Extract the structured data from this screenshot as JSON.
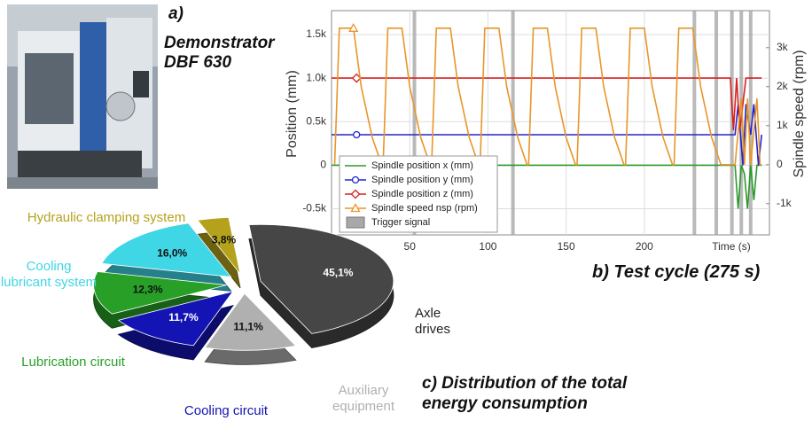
{
  "photo": {
    "label": "a)",
    "caption": "Demonstrator DBF 630"
  },
  "chart_data": [
    {
      "type": "line",
      "title": "b) Test cycle (275 s)",
      "xlabel": "Time (s)",
      "ylabel": "Position  (mm)",
      "y2label": "Spindle speed  (rpm)",
      "xlim": [
        0,
        280
      ],
      "xticks": [
        50,
        100,
        150,
        200
      ],
      "ylim": [
        -800,
        1775
      ],
      "yticks": [
        {
          "value": -500,
          "label": "-0.5k"
        },
        0,
        {
          "value": 500,
          "label": "0.5k"
        },
        {
          "value": 1000,
          "label": "1.0k"
        },
        {
          "value": 1500,
          "label": "1.5k"
        }
      ],
      "y2lim": [
        -1800,
        3950
      ],
      "y2ticks": [
        {
          "value": -1000,
          "label": "-1k"
        },
        0,
        {
          "value": 1000,
          "label": "1k"
        },
        {
          "value": 2000,
          "label": "2k"
        },
        {
          "value": 3000,
          "label": "3k"
        }
      ],
      "grid": true,
      "legend": "lower left",
      "series": [
        {
          "name": "Spindle position x (mm)",
          "color": "#2a9a2a",
          "marker": "none",
          "x": [
            0,
            258,
            260,
            262,
            264,
            266,
            268,
            270,
            272,
            275
          ],
          "values": [
            0,
            0,
            -500,
            0,
            -100,
            -500,
            0,
            -400,
            0,
            0
          ]
        },
        {
          "name": "Spindle position y (mm)",
          "color": "#2323d0",
          "marker": "circle",
          "x": [
            0,
            16,
            258,
            260,
            263,
            265,
            268,
            270,
            273,
            275
          ],
          "values": [
            350,
            350,
            350,
            700,
            0,
            700,
            350,
            700,
            0,
            350
          ]
        },
        {
          "name": "Spindle position z (mm)",
          "color": "#d82020",
          "marker": "diamond",
          "x": [
            0,
            16,
            255,
            257,
            259,
            261,
            265,
            275
          ],
          "values": [
            1000,
            1000,
            1000,
            400,
            1000,
            400,
            1000,
            1000
          ]
        },
        {
          "name": "Spindle speed nsp (rpm)",
          "color": "#e8962a",
          "marker": "triangle",
          "axis": "y2",
          "x": [
            2,
            5,
            14,
            19,
            26,
            32,
            33,
            36,
            45,
            50,
            57,
            63,
            64,
            67,
            76,
            81,
            88,
            94,
            95,
            98,
            107,
            112,
            119,
            125,
            126,
            129,
            138,
            143,
            150,
            156,
            157,
            160,
            169,
            174,
            181,
            187,
            188,
            191,
            200,
            205,
            212,
            218,
            219,
            222,
            231,
            236,
            243,
            249,
            258,
            262,
            264,
            266,
            268,
            272,
            274,
            275
          ],
          "values": [
            0,
            3500,
            3500,
            2000,
            700,
            0,
            0,
            3500,
            3500,
            2000,
            700,
            0,
            0,
            3500,
            3500,
            2000,
            700,
            0,
            0,
            3500,
            3500,
            2000,
            700,
            0,
            0,
            3500,
            3500,
            2000,
            700,
            0,
            0,
            3500,
            3500,
            2000,
            700,
            0,
            0,
            3500,
            3500,
            2000,
            700,
            0,
            0,
            3500,
            3500,
            2000,
            700,
            0,
            0,
            1700,
            0,
            1700,
            0,
            1700,
            0,
            0
          ]
        },
        {
          "name": "Trigger signal",
          "color": "#a8a8a8",
          "x": [
            53,
            116,
            232,
            246,
            256,
            262,
            268
          ]
        }
      ]
    },
    {
      "type": "pie",
      "title": "c) Distribution of the total energy consumption",
      "categories": [
        "Axle drives",
        "Auxiliary equipment",
        "Cooling circuit",
        "Lubrication circuit",
        "Cooling lubricant system",
        "Hydraulic clamping system"
      ],
      "values": [
        45.1,
        11.1,
        11.7,
        12.3,
        16.0,
        3.8
      ],
      "value_labels": [
        "45,1%",
        "11,1%",
        "11,7%",
        "12,3%",
        "16,0%",
        "3,8%"
      ],
      "colors": [
        "#464646",
        "#b0b0b0",
        "#1414b4",
        "#28a028",
        "#3fd6e6",
        "#b4a21c"
      ]
    }
  ]
}
